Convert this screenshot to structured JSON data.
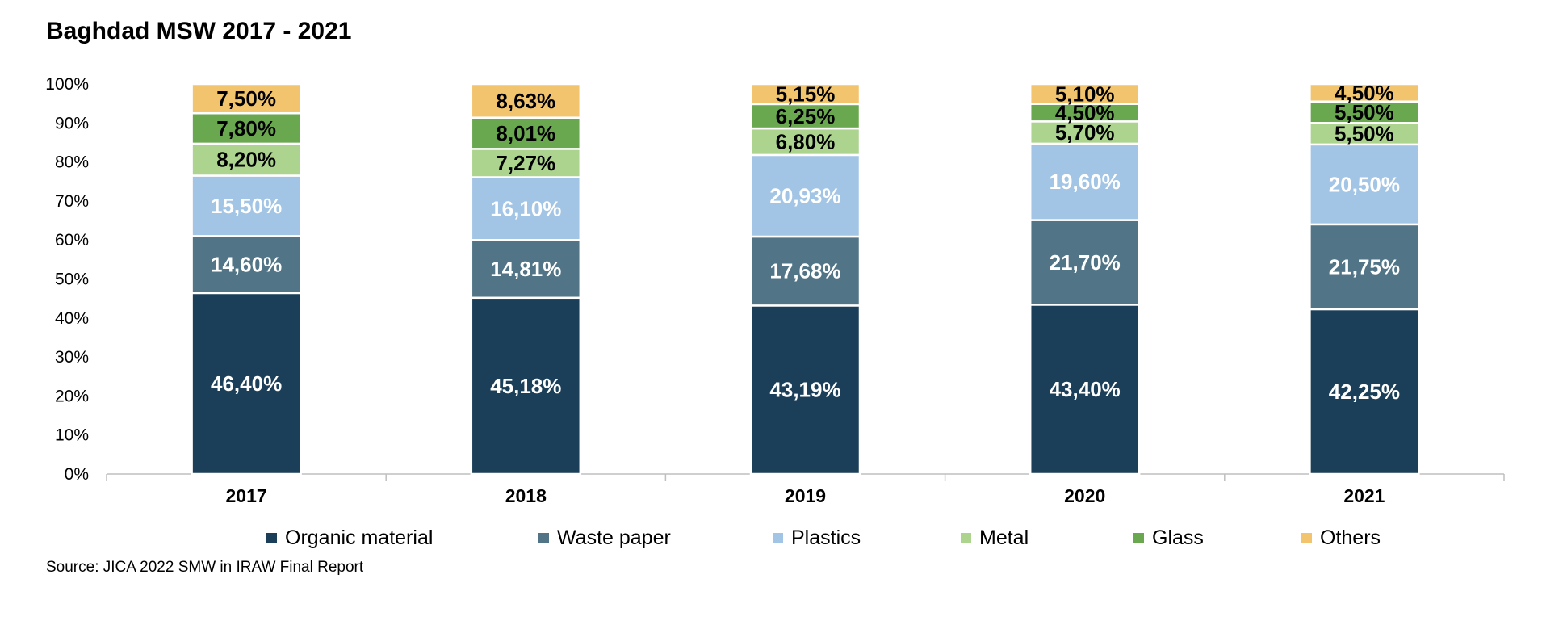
{
  "title": "Baghdad MSW 2017 - 2021",
  "source": "Source: JICA 2022 SMW in IRAW Final Report",
  "chart_data": {
    "type": "bar",
    "stacked": true,
    "categories": [
      "2017",
      "2018",
      "2019",
      "2020",
      "2021"
    ],
    "ylim": [
      0,
      100
    ],
    "yticks": [
      "0%",
      "10%",
      "20%",
      "30%",
      "40%",
      "50%",
      "60%",
      "70%",
      "80%",
      "90%",
      "100%"
    ],
    "grid": false,
    "legend_position": "bottom",
    "series": [
      {
        "name": "Organic material",
        "color": "#1c3f59",
        "label_color": "#ffffff",
        "values": [
          46.4,
          45.18,
          43.19,
          43.4,
          42.25
        ],
        "labels": [
          "46,40%",
          "45,18%",
          "43,19%",
          "43,40%",
          "42,25%"
        ]
      },
      {
        "name": "Waste paper",
        "color": "#517587",
        "label_color": "#ffffff",
        "values": [
          14.6,
          14.81,
          17.68,
          21.7,
          21.75
        ],
        "labels": [
          "14,60%",
          "14,81%",
          "17,68%",
          "21,70%",
          "21,75%"
        ]
      },
      {
        "name": "Plastics",
        "color": "#a3c5e5",
        "label_color": "#ffffff",
        "values": [
          15.5,
          16.1,
          20.93,
          19.6,
          20.5
        ],
        "labels": [
          "15,50%",
          "16,10%",
          "20,93%",
          "19,60%",
          "20,50%"
        ]
      },
      {
        "name": "Metal",
        "color": "#acd48f",
        "label_color": "#000000",
        "values": [
          8.2,
          7.27,
          6.8,
          5.7,
          5.5
        ],
        "labels": [
          "8,20%",
          "7,27%",
          "6,80%",
          "5,70%",
          "5,50%"
        ]
      },
      {
        "name": "Glass",
        "color": "#6aa84f",
        "label_color": "#000000",
        "values": [
          7.8,
          8.01,
          6.25,
          4.5,
          5.5
        ],
        "labels": [
          "7,80%",
          "8,01%",
          "6,25%",
          "4,50%",
          "5,50%"
        ]
      },
      {
        "name": "Others",
        "color": "#f2c46d",
        "label_color": "#000000",
        "values": [
          7.5,
          8.63,
          5.15,
          5.1,
          4.5
        ],
        "labels": [
          "7,50%",
          "8,63%",
          "5,15%",
          "5,10%",
          "4,50%"
        ]
      }
    ]
  }
}
